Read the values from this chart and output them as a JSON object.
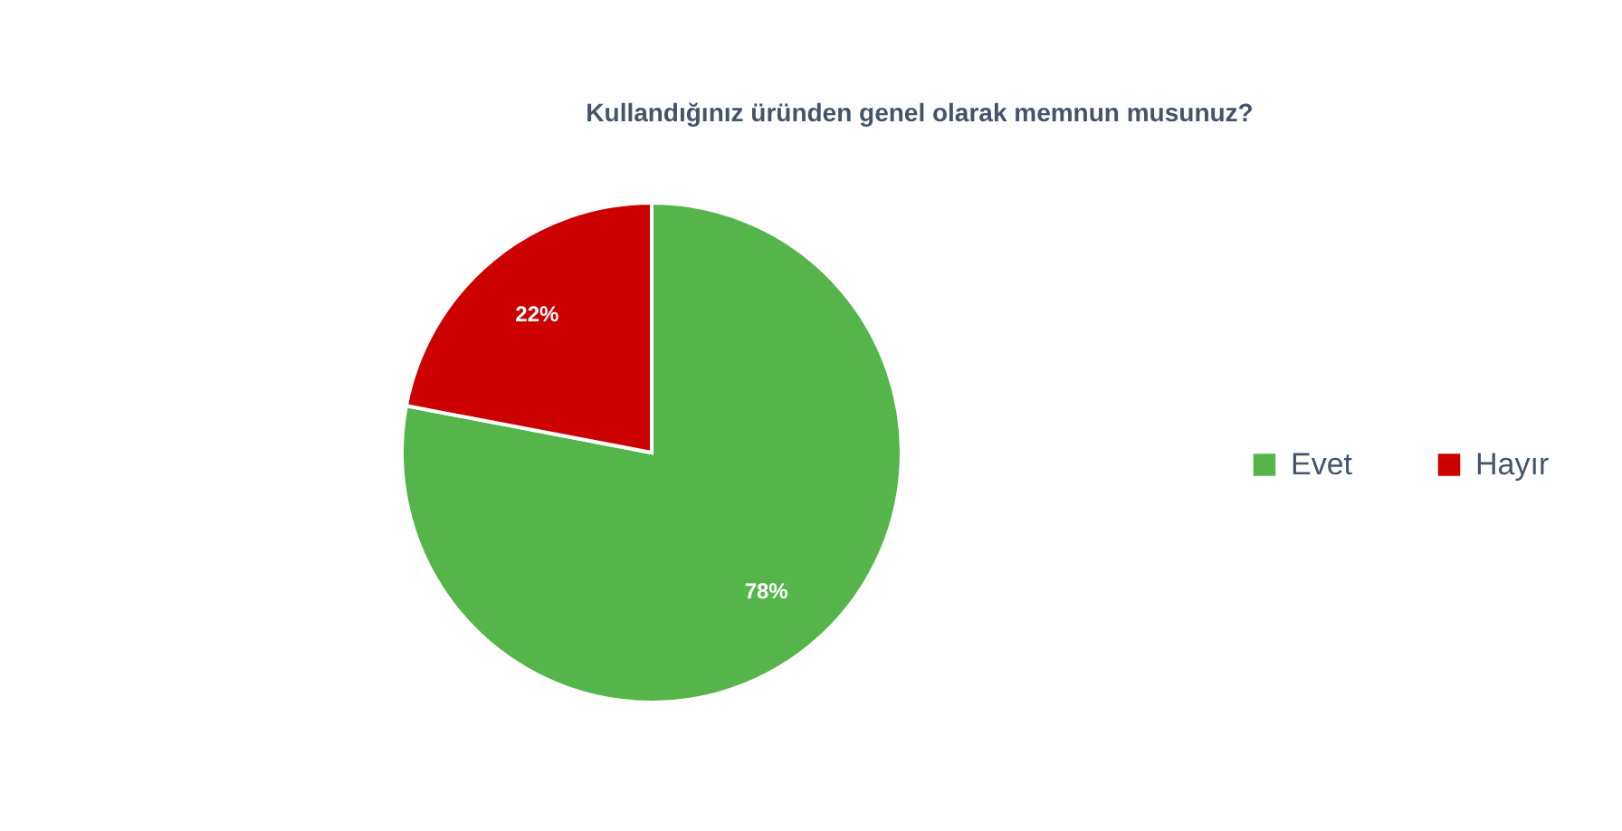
{
  "chart_data": {
    "type": "pie",
    "title": "Kullandığınız üründen genel olarak memnun musunuz?",
    "categories": [
      "Evet",
      "Hayır"
    ],
    "values": [
      78,
      22
    ],
    "colors": [
      "#55b54a",
      "#cc0000"
    ],
    "value_labels": [
      "78%",
      "22%"
    ],
    "legend": "right"
  }
}
